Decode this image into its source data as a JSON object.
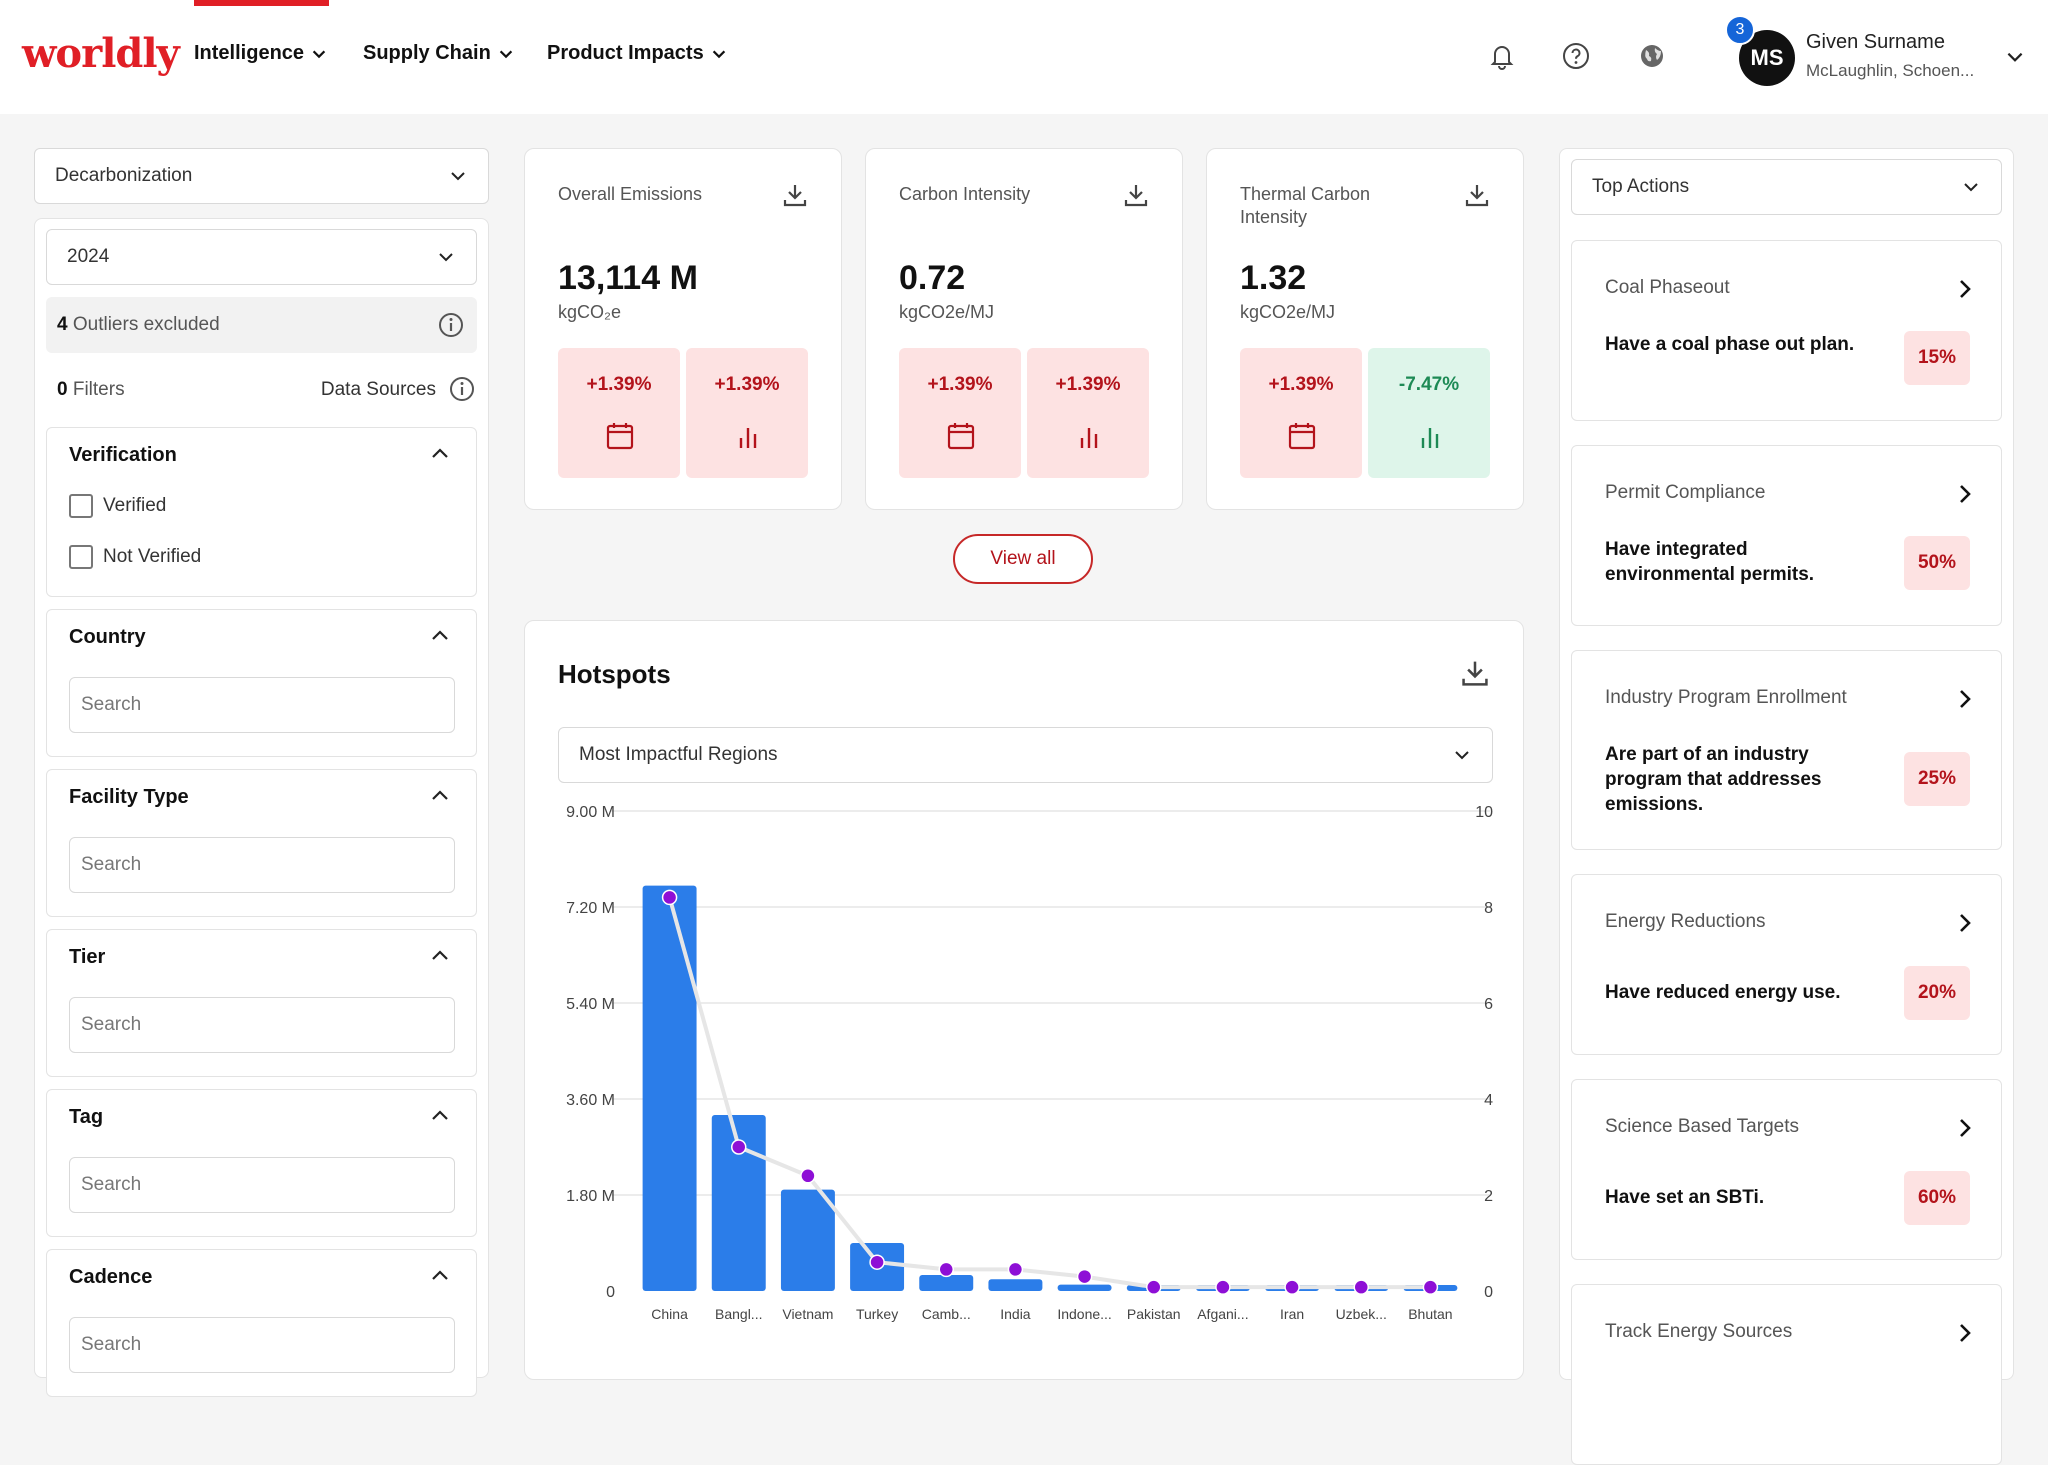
{
  "header": {
    "logo": "worldly",
    "nav": [
      {
        "label": "Intelligence"
      },
      {
        "label": "Supply Chain"
      },
      {
        "label": "Product Impacts"
      }
    ],
    "icons": [
      "bell-icon",
      "help-icon",
      "globe-icon"
    ],
    "user": {
      "initials": "MS",
      "notification_count": "3",
      "name": "Given Surname",
      "org": "McLaughlin, Schoen..."
    }
  },
  "sidebar": {
    "module_select": "Decarbonization",
    "year_select": "2024",
    "outliers": {
      "count": "4",
      "text": "Outliers excluded"
    },
    "filters": {
      "count": "0",
      "label": "Filters",
      "data_sources": "Data Sources"
    },
    "verification": {
      "title": "Verification",
      "options": [
        "Verified",
        "Not Verified"
      ]
    },
    "sections": [
      {
        "title": "Country",
        "placeholder": "Search"
      },
      {
        "title": "Facility Type",
        "placeholder": "Search"
      },
      {
        "title": "Tier",
        "placeholder": "Search"
      },
      {
        "title": "Tag",
        "placeholder": "Search"
      },
      {
        "title": "Cadence",
        "placeholder": "Search"
      }
    ]
  },
  "kpis": [
    {
      "title": "Overall Emissions",
      "value": "13,114 M",
      "unit": "kgCO₂e",
      "tiles": [
        {
          "pct": "+1.39%",
          "icon": "calendar-icon",
          "status": "negative"
        },
        {
          "pct": "+1.39%",
          "icon": "bar-chart-icon",
          "status": "negative"
        }
      ]
    },
    {
      "title": "Carbon Intensity",
      "value": "0.72",
      "unit": "kgCO2e/MJ",
      "tiles": [
        {
          "pct": "+1.39%",
          "icon": "calendar-icon",
          "status": "negative"
        },
        {
          "pct": "+1.39%",
          "icon": "bar-chart-icon",
          "status": "negative"
        }
      ]
    },
    {
      "title": "Thermal Carbon Intensity",
      "value": "1.32",
      "unit": "kgCO2e/MJ",
      "tiles": [
        {
          "pct": "+1.39%",
          "icon": "calendar-icon",
          "status": "negative"
        },
        {
          "pct": "-7.47%",
          "icon": "bar-chart-icon",
          "status": "positive"
        }
      ]
    }
  ],
  "view_all": "View all",
  "hotspots": {
    "title": "Hotspots",
    "select": "Most Impactful Regions",
    "chart_data": {
      "type": "bar",
      "categories": [
        "China",
        "Bangl...",
        "Vietnam",
        "Turkey",
        "Camb...",
        "India",
        "Indone...",
        "Pakistan",
        "Afgani...",
        "Iran",
        "Uzbek...",
        "Bhutan"
      ],
      "series": [
        {
          "type": "bar",
          "axis": "left",
          "color": "#2b7de9",
          "values": [
            7.6,
            3.3,
            1.9,
            0.9,
            0.3,
            0.22,
            0.12,
            0.06,
            0.05,
            0.05,
            0.05,
            0.08
          ]
        },
        {
          "type": "line",
          "axis": "right",
          "color": "#8e0fd6",
          "values": [
            8.2,
            3.0,
            2.4,
            0.6,
            0.45,
            0.45,
            0.3,
            0.08,
            0.08,
            0.08,
            0.08,
            0.08
          ]
        }
      ],
      "left_ticks": [
        "0",
        "1.80 M",
        "3.60 M",
        "5.40 M",
        "7.20 M",
        "9.00 M"
      ],
      "right_ticks": [
        "0",
        "2",
        "4",
        "6",
        "8",
        "10"
      ],
      "ylim": [
        0,
        9.0
      ],
      "ylim_right": [
        0,
        10
      ],
      "grid": true
    }
  },
  "top_actions": {
    "select": "Top Actions",
    "items": [
      {
        "title": "Coal Phaseout",
        "desc": "Have a coal phase out plan.",
        "pct": "15%"
      },
      {
        "title": "Permit Compliance",
        "desc": "Have integrated environmental permits.",
        "pct": "50%"
      },
      {
        "title": "Industry Program Enrollment",
        "desc": "Are part of an industry program that addresses emissions.",
        "pct": "25%"
      },
      {
        "title": "Energy Reductions",
        "desc": "Have reduced energy use.",
        "pct": "20%"
      },
      {
        "title": "Science Based Targets",
        "desc": "Have set an SBTi.",
        "pct": "60%"
      },
      {
        "title": "Track Energy Sources",
        "desc": "",
        "pct": ""
      }
    ]
  }
}
